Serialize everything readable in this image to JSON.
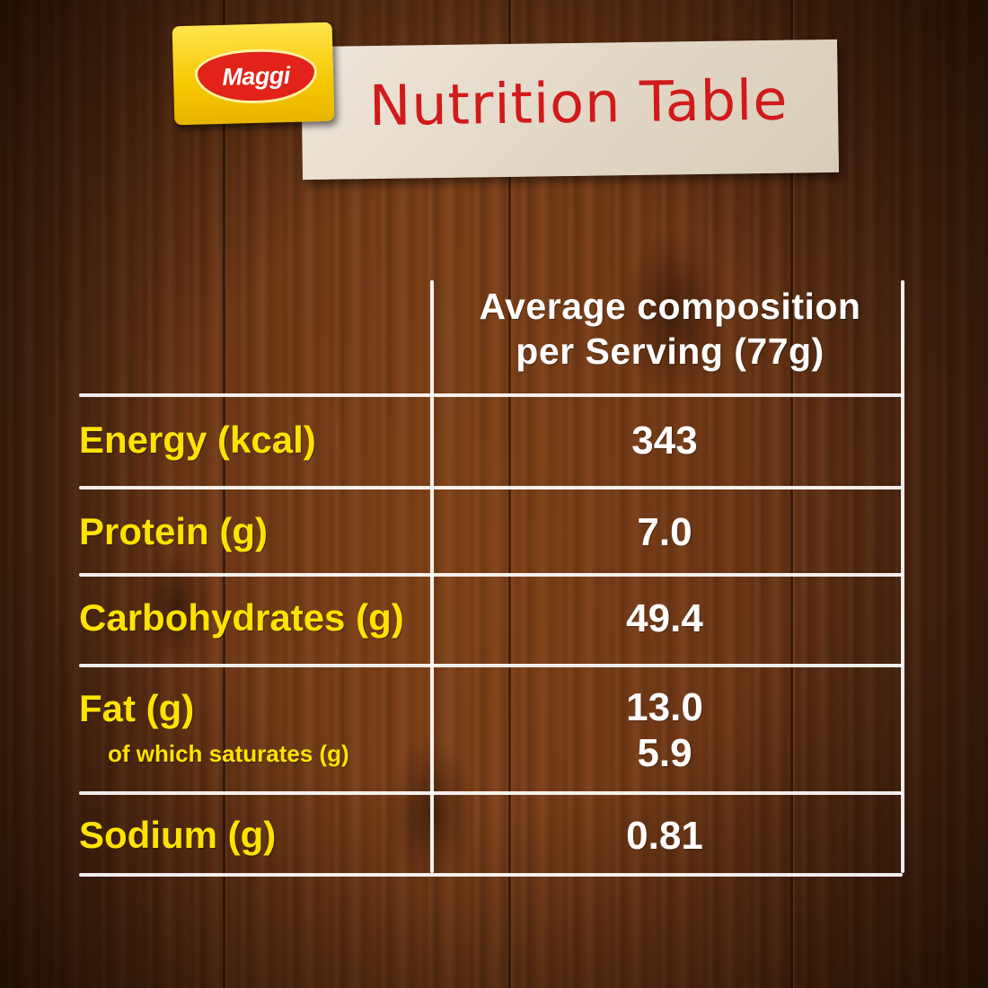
{
  "brand": {
    "logo_text": "Maggi"
  },
  "title": "Nutrition Table",
  "table": {
    "header_line1": "Average composition",
    "header_line2": "per Serving (77g)",
    "rows": [
      {
        "label": "Energy (kcal)",
        "value": "343"
      },
      {
        "label": "Protein (g)",
        "value": "7.0"
      },
      {
        "label": "Carbohydrates (g)",
        "value": "49.4"
      },
      {
        "label": "Fat (g)",
        "value": "13.0",
        "sublabel": "of which saturates (g)",
        "subvalue": "5.9"
      },
      {
        "label": "Sodium (g)",
        "value": "0.81"
      }
    ]
  },
  "colors": {
    "label": "#ffe300",
    "value": "#ffffff",
    "title": "#d11a1a",
    "logo_yellow": "#f6c800",
    "logo_red": "#e2231a",
    "wood": "#6d3716"
  }
}
